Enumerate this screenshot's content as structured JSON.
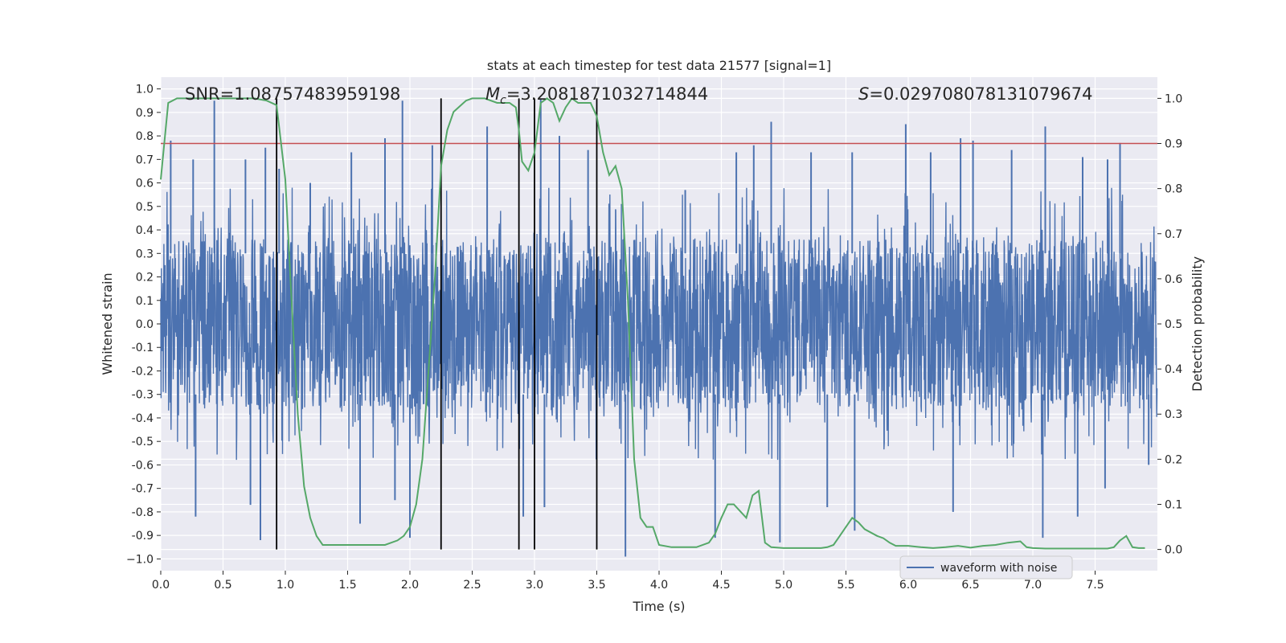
{
  "chart_data": {
    "type": "line",
    "title": "stats at each timestep for test data 21577 [signal=1]",
    "xlabel": "Time (s)",
    "ylabel_left": "Whitened strain",
    "ylabel_right": "Detection probability",
    "xlim": [
      0.0,
      8.0
    ],
    "ylim_left": [
      -1.05,
      1.05
    ],
    "ylim_right": [
      -0.047,
      1.047
    ],
    "xticks": [
      0.0,
      0.5,
      1.0,
      1.5,
      2.0,
      2.5,
      3.0,
      3.5,
      4.0,
      4.5,
      5.0,
      5.5,
      6.0,
      6.5,
      7.0,
      7.5
    ],
    "xtick_labels": [
      "0.0",
      "0.5",
      "1.0",
      "1.5",
      "2.0",
      "2.5",
      "3.0",
      "3.5",
      "4.0",
      "4.5",
      "5.0",
      "5.5",
      "6.0",
      "6.5",
      "7.0",
      "7.5"
    ],
    "yticks_left": [
      1.0,
      0.9,
      0.8,
      0.7,
      0.6,
      0.5,
      0.4,
      0.3,
      0.2,
      0.1,
      0.0,
      -0.1,
      -0.2,
      -0.3,
      -0.4,
      -0.5,
      -0.6,
      -0.7,
      -0.8,
      -0.9,
      -1.0
    ],
    "ytick_labels_left": [
      "1.0",
      "0.9",
      "0.8",
      "0.7",
      "0.6",
      "0.5",
      "0.4",
      "0.3",
      "0.2",
      "0.1",
      "0.0",
      "-0.1",
      "-0.2",
      "-0.3",
      "-0.4",
      "-0.5",
      "-0.6",
      "-0.7",
      "-0.8",
      "-0.9",
      "−1.0"
    ],
    "yticks_right": [
      1.0,
      0.9,
      0.8,
      0.7,
      0.6,
      0.5,
      0.4,
      0.3,
      0.2,
      0.1,
      0.0
    ],
    "ytick_labels_right": [
      "1.0",
      "0.9",
      "0.8",
      "0.7",
      "0.6",
      "0.5",
      "0.4",
      "0.3",
      "0.2",
      "0.1",
      "0.0"
    ],
    "threshold": 0.9,
    "event_times": [
      0.93,
      2.25,
      2.875,
      3.0,
      3.5
    ],
    "annotations": {
      "snr": "SNR=1.08757483959198",
      "mc_symbol": "M",
      "mc_sub": "c",
      "mc_value": "=3.2081871032714844",
      "s_symbol": "S",
      "s_value": "=0.029708078131079674"
    },
    "waveform": {
      "name": "waveform with noise",
      "sample_rate": 400,
      "core_amplitude": 0.36,
      "spike_peaks": [
        [
          0.08,
          0.78
        ],
        [
          0.26,
          0.7
        ],
        [
          0.43,
          0.95
        ],
        [
          0.68,
          0.7
        ],
        [
          0.84,
          0.75
        ],
        [
          0.95,
          0.66
        ],
        [
          1.2,
          0.6
        ],
        [
          1.53,
          0.73
        ],
        [
          1.8,
          0.79
        ],
        [
          1.94,
          0.95
        ],
        [
          2.18,
          0.76
        ],
        [
          2.62,
          0.84
        ],
        [
          3.05,
          0.96
        ],
        [
          3.2,
          0.8
        ],
        [
          3.43,
          0.74
        ],
        [
          4.21,
          0.57
        ],
        [
          4.62,
          0.73
        ],
        [
          4.76,
          0.76
        ],
        [
          4.9,
          0.86
        ],
        [
          5.22,
          0.73
        ],
        [
          5.55,
          0.73
        ],
        [
          5.98,
          0.85
        ],
        [
          6.18,
          0.73
        ],
        [
          6.42,
          0.79
        ],
        [
          6.52,
          0.78
        ],
        [
          6.83,
          0.74
        ],
        [
          7.1,
          0.84
        ],
        [
          7.4,
          0.71
        ],
        [
          7.6,
          0.7
        ],
        [
          7.7,
          0.77
        ],
        [
          0.28,
          -0.82
        ],
        [
          0.72,
          -0.77
        ],
        [
          0.8,
          -0.92
        ],
        [
          1.6,
          -0.85
        ],
        [
          1.88,
          -0.75
        ],
        [
          2.0,
          -0.91
        ],
        [
          2.91,
          -0.82
        ],
        [
          3.08,
          -0.78
        ],
        [
          3.73,
          -0.99
        ],
        [
          4.45,
          -0.91
        ],
        [
          4.97,
          -0.93
        ],
        [
          5.35,
          -0.78
        ],
        [
          5.57,
          -0.88
        ],
        [
          6.36,
          -0.8
        ],
        [
          7.08,
          -0.91
        ],
        [
          7.36,
          -0.82
        ],
        [
          7.58,
          -0.7
        ],
        [
          7.93,
          -0.6
        ]
      ]
    },
    "probability": {
      "x": [
        0.0,
        0.06,
        0.13,
        0.2,
        0.3,
        0.45,
        0.6,
        0.75,
        0.85,
        0.93,
        1.0,
        1.05,
        1.1,
        1.15,
        1.2,
        1.25,
        1.3,
        1.35,
        1.45,
        1.55,
        1.6,
        1.7,
        1.8,
        1.9,
        1.95,
        2.0,
        2.05,
        2.1,
        2.15,
        2.2,
        2.25,
        2.3,
        2.35,
        2.45,
        2.5,
        2.6,
        2.7,
        2.8,
        2.85,
        2.875,
        2.9,
        2.95,
        3.0,
        3.05,
        3.1,
        3.15,
        3.2,
        3.25,
        3.3,
        3.35,
        3.4,
        3.45,
        3.5,
        3.55,
        3.6,
        3.65,
        3.7,
        3.75,
        3.8,
        3.85,
        3.9,
        3.95,
        4.0,
        4.1,
        4.15,
        4.2,
        4.25,
        4.3,
        4.4,
        4.45,
        4.5,
        4.55,
        4.6,
        4.7,
        4.75,
        4.8,
        4.85,
        4.9,
        5.0,
        5.1,
        5.2,
        5.3,
        5.35,
        5.4,
        5.45,
        5.5,
        5.55,
        5.6,
        5.65,
        5.75,
        5.8,
        5.85,
        5.9,
        6.0,
        6.1,
        6.2,
        6.3,
        6.4,
        6.5,
        6.6,
        6.7,
        6.8,
        6.9,
        6.95,
        7.0,
        7.1,
        7.2,
        7.3,
        7.5,
        7.6,
        7.65,
        7.7,
        7.75,
        7.8,
        7.85,
        7.9
      ],
      "y": [
        0.82,
        0.99,
        1.0,
        1.0,
        1.0,
        1.0,
        1.0,
        1.0,
        0.995,
        0.985,
        0.82,
        0.55,
        0.3,
        0.14,
        0.07,
        0.03,
        0.01,
        0.01,
        0.01,
        0.01,
        0.01,
        0.01,
        0.01,
        0.02,
        0.03,
        0.05,
        0.1,
        0.2,
        0.4,
        0.6,
        0.85,
        0.93,
        0.97,
        0.995,
        1.0,
        1.0,
        0.99,
        0.99,
        0.98,
        0.93,
        0.86,
        0.84,
        0.88,
        0.99,
        1.0,
        0.99,
        0.95,
        0.98,
        1.0,
        0.99,
        0.99,
        0.99,
        0.96,
        0.88,
        0.83,
        0.85,
        0.8,
        0.55,
        0.2,
        0.07,
        0.05,
        0.05,
        0.01,
        0.005,
        0.005,
        0.005,
        0.005,
        0.005,
        0.015,
        0.035,
        0.07,
        0.1,
        0.1,
        0.07,
        0.12,
        0.13,
        0.015,
        0.005,
        0.003,
        0.003,
        0.003,
        0.003,
        0.005,
        0.01,
        0.03,
        0.05,
        0.07,
        0.06,
        0.045,
        0.03,
        0.025,
        0.015,
        0.008,
        0.008,
        0.005,
        0.003,
        0.005,
        0.008,
        0.004,
        0.008,
        0.01,
        0.015,
        0.018,
        0.005,
        0.003,
        0.002,
        0.002,
        0.002,
        0.002,
        0.002,
        0.005,
        0.02,
        0.03,
        0.005,
        0.003,
        0.003
      ]
    }
  }
}
